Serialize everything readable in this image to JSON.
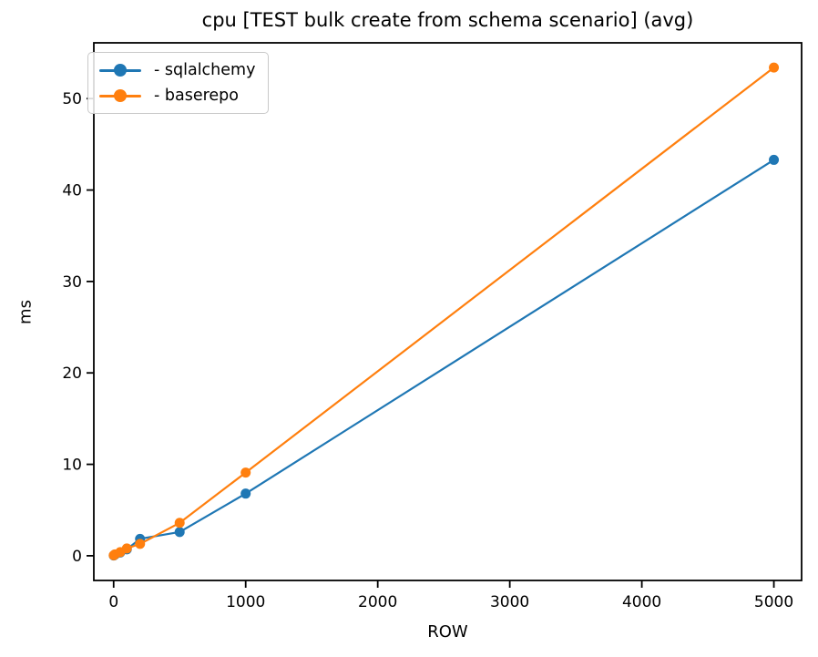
{
  "figure": {
    "background": "#ffffff",
    "spine_color": "#000000",
    "text_color": "#000000"
  },
  "chart_data": {
    "type": "line",
    "title": "cpu [TEST bulk create from schema scenario] (avg)",
    "xlabel": "ROW",
    "ylabel": "ms",
    "x": [
      1,
      10,
      50,
      100,
      200,
      500,
      1000,
      5000
    ],
    "series": [
      {
        "name": "- sqlalchemy",
        "color": "#1f77b4",
        "values": [
          0.03,
          0.12,
          0.35,
          0.7,
          1.85,
          2.6,
          6.8,
          43.3
        ]
      },
      {
        "name": "- baserepo",
        "color": "#ff7f0e",
        "values": [
          0.05,
          0.15,
          0.4,
          0.8,
          1.3,
          3.6,
          9.1,
          53.4
        ]
      }
    ],
    "xticks": [
      0,
      1000,
      2000,
      3000,
      4000,
      5000
    ],
    "yticks": [
      0,
      10,
      20,
      30,
      40,
      50
    ],
    "xlim": [
      -150,
      5210
    ],
    "ylim": [
      -2.7,
      56.1
    ],
    "grid": false,
    "legend_position": "upper left",
    "marker": "o",
    "line_width": 2.2,
    "marker_radius": 5.5
  }
}
